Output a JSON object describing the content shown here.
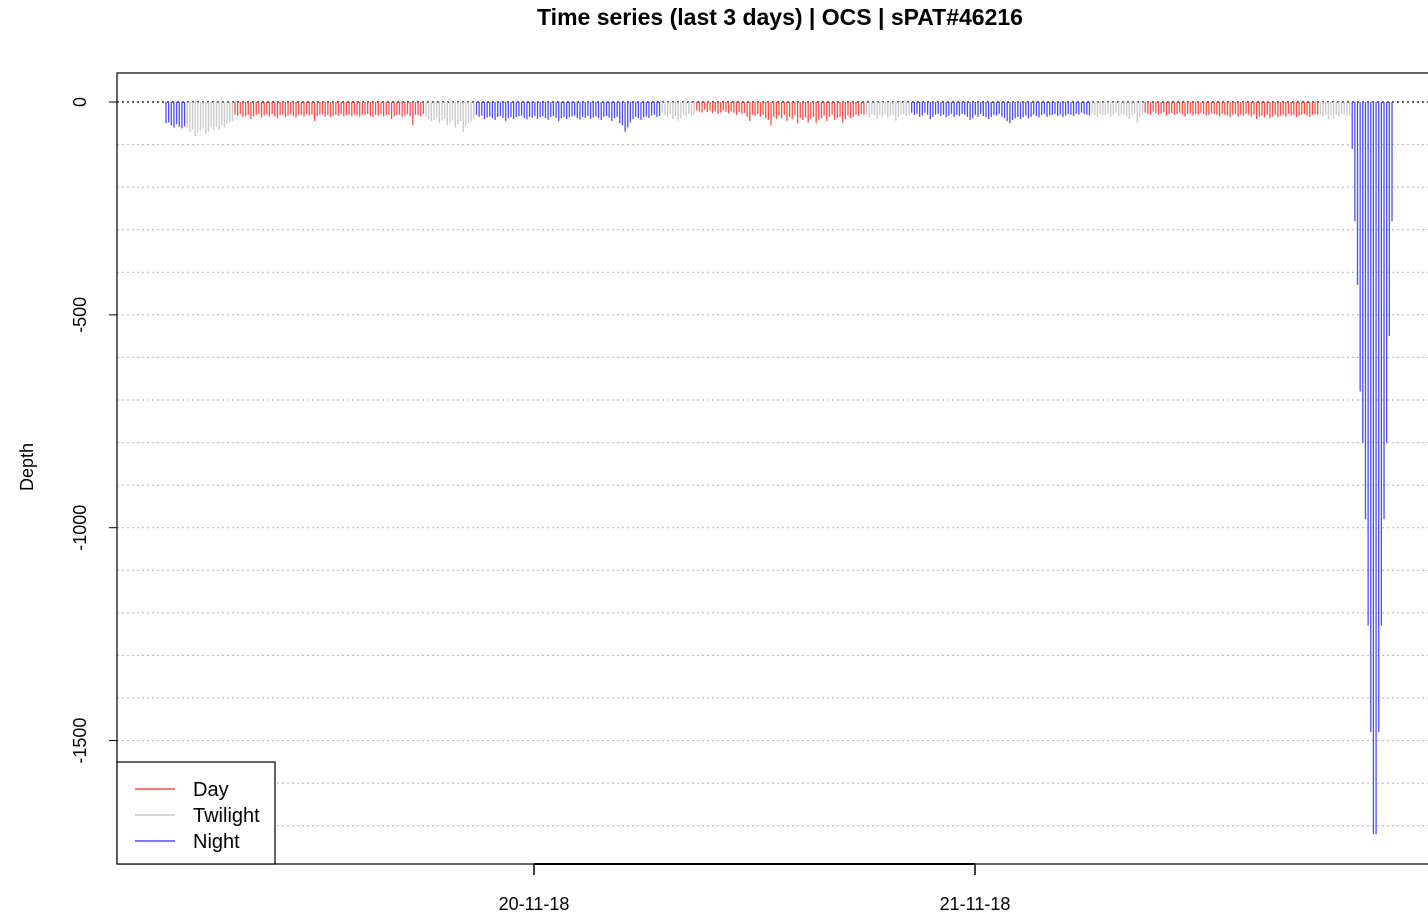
{
  "chart_data": {
    "type": "bar",
    "title": "Time series (last 3 days) | OCS | sPAT#46216",
    "xlabel": "",
    "ylabel": "Depth",
    "ylim": [
      -1800,
      60
    ],
    "y_ticks": [
      0,
      -500,
      -1000,
      -1500
    ],
    "y_tick_labels": [
      "0",
      "-500",
      "-1000",
      "-1500"
    ],
    "x_ticks": [
      "20-11-18",
      "21-11-18"
    ],
    "reference_line": 0,
    "grid": "horizontal dotted",
    "legend": {
      "position": "bottom-left",
      "entries": [
        {
          "label": "Day",
          "color": "#ff4d4d"
        },
        {
          "label": "Twilight",
          "color": "#c8c8c8"
        },
        {
          "label": "Night",
          "color": "#4d4dff"
        }
      ]
    },
    "colors": {
      "Day": "#ff4d4d",
      "Twilight": "#c8c8c8",
      "Night": "#4d4dff"
    },
    "series": [
      {
        "name": "Night",
        "values": [
          -50,
          -48,
          -55,
          -60,
          -52,
          -58,
          -62,
          -57
        ]
      },
      {
        "name": "Twilight",
        "values": [
          -60,
          -70,
          -65,
          -80,
          -72,
          -68,
          -62,
          -75,
          -70,
          -60,
          -66,
          -58,
          -64,
          -55,
          -60,
          -52,
          -48,
          -45
        ]
      },
      {
        "name": "Day",
        "values": [
          -30,
          -32,
          -28,
          -35,
          -33,
          -30,
          -40,
          -34,
          -31,
          -29,
          -36,
          -32,
          -30,
          -34,
          -28,
          -33,
          -38,
          -31,
          -30,
          -35,
          -32,
          -29,
          -33,
          -36,
          -30,
          -31,
          -34,
          -28,
          -32,
          -30,
          -45,
          -33,
          -30,
          -29,
          -35,
          -31,
          -36,
          -33,
          -30,
          -32,
          -28,
          -34,
          -31,
          -30,
          -33,
          -29,
          -32,
          -35,
          -30,
          -31,
          -28,
          -33,
          -36,
          -30,
          -32,
          -29,
          -34,
          -31,
          -30,
          -40,
          -33,
          -31,
          -30,
          -35,
          -32,
          -29,
          -33,
          -55,
          -30,
          -31,
          -34,
          -28
        ]
      },
      {
        "name": "Twilight",
        "values": [
          -35,
          -40,
          -45,
          -42,
          -38,
          -50,
          -44,
          -40,
          -55,
          -48,
          -43,
          -60,
          -52,
          -45,
          -70,
          -58,
          -50,
          -45,
          -40
        ]
      },
      {
        "name": "Night",
        "values": [
          -30,
          -35,
          -32,
          -40,
          -36,
          -34,
          -38,
          -42,
          -35,
          -33,
          -37,
          -45,
          -38,
          -35,
          -40,
          -36,
          -34,
          -32,
          -38,
          -41,
          -35,
          -37,
          -33,
          -40,
          -36,
          -34,
          -38,
          -42,
          -35,
          -33,
          -37,
          -45,
          -38,
          -35,
          -40,
          -36,
          -34,
          -32,
          -38,
          -41,
          -35,
          -37,
          -33,
          -40,
          -36,
          -34,
          -38,
          -42,
          -35,
          -33,
          -37,
          -45,
          -38,
          -35,
          -50,
          -55,
          -70,
          -60,
          -48,
          -40,
          -35,
          -38,
          -42,
          -36,
          -34,
          -38,
          -32,
          -30,
          -35,
          -33
        ]
      },
      {
        "name": "Twilight",
        "values": [
          -25,
          -30,
          -35,
          -28,
          -40,
          -33,
          -45,
          -38,
          -30,
          -35,
          -28,
          -32,
          -30
        ]
      },
      {
        "name": "Day",
        "values": [
          -20,
          -22,
          -25,
          -18,
          -24,
          -20,
          -26,
          -22,
          -28,
          -25,
          -20,
          -23,
          -27,
          -22,
          -25,
          -30,
          -24,
          -28,
          -26,
          -35,
          -45,
          -30,
          -32,
          -28,
          -35,
          -30,
          -38,
          -42,
          -55,
          -35,
          -40,
          -32,
          -38,
          -30,
          -45,
          -35,
          -40,
          -32,
          -50,
          -38,
          -42,
          -36,
          -48,
          -40,
          -35,
          -50,
          -42,
          -38,
          -32,
          -45,
          -35,
          -30,
          -42,
          -38,
          -35,
          -48,
          -40,
          -32,
          -38,
          -35,
          -30,
          -33,
          -28,
          -30
        ]
      },
      {
        "name": "Twilight",
        "values": [
          -30,
          -35,
          -28,
          -32,
          -40,
          -30,
          -35,
          -28,
          -38,
          -32,
          -30,
          -45,
          -35,
          -30,
          -28,
          -33,
          -30
        ]
      },
      {
        "name": "Night",
        "values": [
          -25,
          -30,
          -28,
          -35,
          -32,
          -25,
          -30,
          -40,
          -35,
          -30,
          -28,
          -33,
          -30,
          -36,
          -32,
          -28,
          -35,
          -30,
          -33,
          -28,
          -30,
          -35,
          -42,
          -38,
          -30,
          -35,
          -28,
          -33,
          -36,
          -40,
          -35,
          -30,
          -32,
          -28,
          -35,
          -38,
          -45,
          -50,
          -42,
          -38,
          -35,
          -40,
          -36,
          -32,
          -38,
          -35,
          -30,
          -33,
          -36,
          -30,
          -28,
          -35,
          -32,
          -30,
          -28,
          -33,
          -30,
          -35,
          -32,
          -28,
          -30,
          -33,
          -28,
          -30,
          -25,
          -28,
          -30,
          -32
        ]
      },
      {
        "name": "Twilight",
        "values": [
          -25,
          -30,
          -35,
          -28,
          -32,
          -30,
          -28,
          -35,
          -30,
          -25,
          -32,
          -28,
          -30,
          -35,
          -40,
          -30,
          -28,
          -50,
          -35,
          -30
        ]
      },
      {
        "name": "Day",
        "values": [
          -25,
          -28,
          -30,
          -22,
          -26,
          -30,
          -28,
          -24,
          -32,
          -28,
          -26,
          -30,
          -28,
          -25,
          -30,
          -34,
          -28,
          -26,
          -32,
          -28,
          -30,
          -25,
          -28,
          -32,
          -30,
          -26,
          -28,
          -30,
          -34,
          -28,
          -30,
          -32,
          -36,
          -30,
          -28,
          -35,
          -30,
          -32,
          -28,
          -30,
          -34,
          -30,
          -40,
          -35,
          -32,
          -36,
          -30,
          -38,
          -34,
          -30,
          -36,
          -32,
          -30,
          -34,
          -28,
          -32,
          -30,
          -36,
          -32,
          -30,
          -28,
          -32,
          -35,
          -30,
          -28,
          -30
        ]
      },
      {
        "name": "Twilight",
        "values": [
          -28,
          -35,
          -30,
          -40,
          -32,
          -38,
          -30,
          -35,
          -28,
          -30,
          -32,
          -30
        ]
      },
      {
        "name": "Night",
        "values": [
          -110,
          -280,
          -430,
          -680,
          -800,
          -980,
          -1230,
          -1480,
          -1720,
          -1720,
          -1480,
          -1230,
          -980,
          -800,
          -550,
          -280
        ]
      }
    ]
  }
}
